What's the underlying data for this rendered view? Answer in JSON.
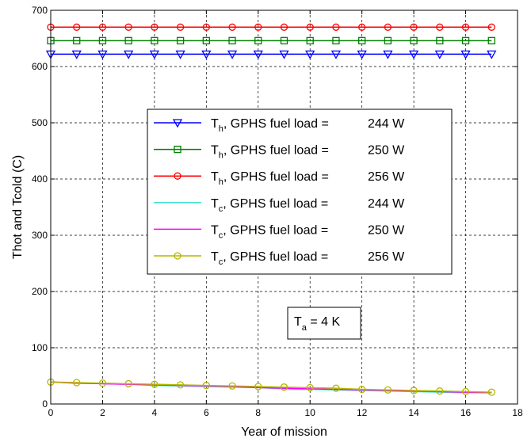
{
  "chart_data": {
    "type": "line",
    "xlabel": "Year of mission",
    "ylabel": "Thot and Tcold (C)",
    "xlim": [
      0,
      18
    ],
    "ylim": [
      0,
      700
    ],
    "xticks": [
      0,
      2,
      4,
      6,
      8,
      10,
      12,
      14,
      16,
      18
    ],
    "yticks": [
      0,
      100,
      200,
      300,
      400,
      500,
      600,
      700
    ],
    "grid": true,
    "legend_position": "center",
    "x": [
      0,
      1,
      2,
      3,
      4,
      5,
      6,
      7,
      8,
      9,
      10,
      11,
      12,
      13,
      14,
      15,
      16,
      17
    ],
    "series": [
      {
        "name": "T_h, GPHS fuel load = 244 W",
        "sym": "T",
        "sub": "h",
        "prefix": "GPHS fuel load =",
        "load": "244 W",
        "color": "#0000ff",
        "marker": "triangle-down",
        "values": [
          622,
          622,
          622,
          622,
          622,
          622,
          622,
          622,
          622,
          622,
          622,
          622,
          622,
          622,
          622,
          622,
          622,
          622
        ]
      },
      {
        "name": "T_h, GPHS fuel load = 250 W",
        "sym": "T",
        "sub": "h",
        "prefix": "GPHS fuel load =",
        "load": "250 W",
        "color": "#008000",
        "marker": "square",
        "values": [
          646,
          646,
          646,
          646,
          646,
          646,
          646,
          646,
          646,
          646,
          646,
          646,
          646,
          646,
          646,
          646,
          646,
          646
        ]
      },
      {
        "name": "T_h, GPHS fuel load = 256 W",
        "sym": "T",
        "sub": "h",
        "prefix": "GPHS fuel load =",
        "load": "256 W",
        "color": "#ff0000",
        "marker": "circle",
        "values": [
          670,
          670,
          670,
          670,
          670,
          670,
          670,
          670,
          670,
          670,
          670,
          670,
          670,
          670,
          670,
          670,
          670,
          670
        ]
      },
      {
        "name": "T_c, GPHS fuel load = 244 W",
        "sym": "T",
        "sub": "c",
        "prefix": "GPHS fuel load =",
        "load": "244 W",
        "color": "#40e0d0",
        "marker": "none",
        "values": [
          39,
          37,
          36,
          35,
          33,
          32,
          31,
          30,
          29,
          27,
          26,
          25,
          24,
          23,
          22,
          21,
          20,
          20
        ]
      },
      {
        "name": "T_c, GPHS fuel load = 250 W",
        "sym": "T",
        "sub": "c",
        "prefix": "GPHS fuel load =",
        "load": "250 W",
        "color": "#ff00ff",
        "marker": "none",
        "values": [
          39,
          37,
          36,
          35,
          34,
          33,
          32,
          31,
          29,
          28,
          27,
          26,
          25,
          24,
          23,
          22,
          21,
          20
        ]
      },
      {
        "name": "T_c, GPHS fuel load = 256 W",
        "sym": "T",
        "sub": "c",
        "prefix": "GPHS fuel load =",
        "load": "256 W",
        "color": "#b5b500",
        "marker": "circle",
        "values": [
          39,
          38,
          37,
          36,
          35,
          34,
          33,
          32,
          31,
          30,
          29,
          28,
          26,
          25,
          24,
          23,
          22,
          21
        ]
      }
    ],
    "annotation": {
      "sym": "T",
      "sub": "a",
      "rest": " = 4 K"
    }
  }
}
